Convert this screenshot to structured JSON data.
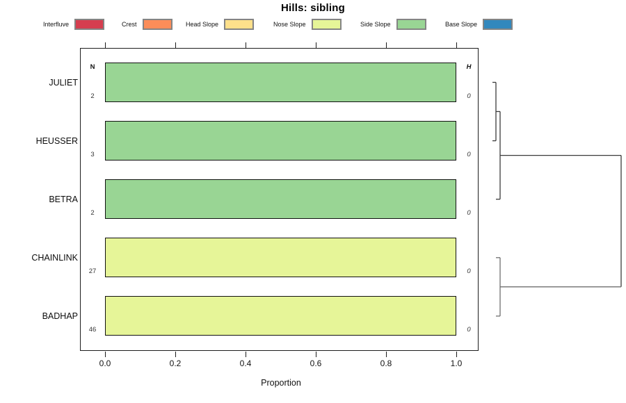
{
  "title": "Hills: sibling",
  "legend": {
    "items": [
      {
        "label": "Interfluve",
        "color": "#D53E4F"
      },
      {
        "label": "Crest",
        "color": "#FC8D59"
      },
      {
        "label": "Head Slope",
        "color": "#FEE08B"
      },
      {
        "label": "Nose Slope",
        "color": "#E6F598"
      },
      {
        "label": "Side Slope",
        "color": "#99D594"
      },
      {
        "label": "Base Slope",
        "color": "#3288BD"
      }
    ]
  },
  "axis": {
    "xlabel": "Proportion",
    "ticks": [
      "0.0",
      "0.2",
      "0.4",
      "0.6",
      "0.8",
      "1.0"
    ]
  },
  "columns": {
    "n_header": "N",
    "h_header": "H"
  },
  "rows": [
    {
      "label": "JULIET",
      "n": "2",
      "h": "0",
      "segment": "Side Slope",
      "color": "#99D594",
      "value": 1
    },
    {
      "label": "HEUSSER",
      "n": "3",
      "h": "0",
      "segment": "Side Slope",
      "color": "#99D594",
      "value": 1
    },
    {
      "label": "BETRA",
      "n": "2",
      "h": "0",
      "segment": "Side Slope",
      "color": "#99D594",
      "value": 1
    },
    {
      "label": "CHAINLINK",
      "n": "27",
      "h": "0",
      "segment": "Nose Slope",
      "color": "#E6F598",
      "value": 1
    },
    {
      "label": "BADHAP",
      "n": "46",
      "h": "0",
      "segment": "Nose Slope",
      "color": "#E6F598",
      "value": 1
    }
  ],
  "chart_data": {
    "type": "bar",
    "orientation": "horizontal-stacked-proportion",
    "title": "Hills: sibling",
    "xlabel": "Proportion",
    "xlim": [
      0,
      1
    ],
    "xticks": [
      0.0,
      0.2,
      0.4,
      0.6,
      0.8,
      1.0
    ],
    "categories": [
      "JULIET",
      "HEUSSER",
      "BETRA",
      "CHAINLINK",
      "BADHAP"
    ],
    "legend_entries": [
      "Interfluve",
      "Crest",
      "Head Slope",
      "Nose Slope",
      "Side Slope",
      "Base Slope"
    ],
    "legend_position": "top",
    "series": [
      {
        "name": "Interfluve",
        "color": "#D53E4F",
        "values": [
          0,
          0,
          0,
          0,
          0
        ]
      },
      {
        "name": "Crest",
        "color": "#FC8D59",
        "values": [
          0,
          0,
          0,
          0,
          0
        ]
      },
      {
        "name": "Head Slope",
        "color": "#FEE08B",
        "values": [
          0,
          0,
          0,
          0,
          0
        ]
      },
      {
        "name": "Nose Slope",
        "color": "#E6F598",
        "values": [
          0,
          0,
          0,
          1.0,
          1.0
        ]
      },
      {
        "name": "Side Slope",
        "color": "#99D594",
        "values": [
          1.0,
          1.0,
          1.0,
          0,
          0
        ]
      },
      {
        "name": "Base Slope",
        "color": "#3288BD",
        "values": [
          0,
          0,
          0,
          0,
          0
        ]
      }
    ],
    "n_column": {
      "header": "N",
      "values": [
        2,
        3,
        2,
        27,
        46
      ]
    },
    "h_column": {
      "header": "H",
      "values": [
        0,
        0,
        0,
        0,
        0
      ]
    },
    "grid": false,
    "dendrogram": {
      "position": "right",
      "topology": "(((JULIET,HEUSSER),BETRA),(CHAINLINK,BADHAP))"
    }
  }
}
